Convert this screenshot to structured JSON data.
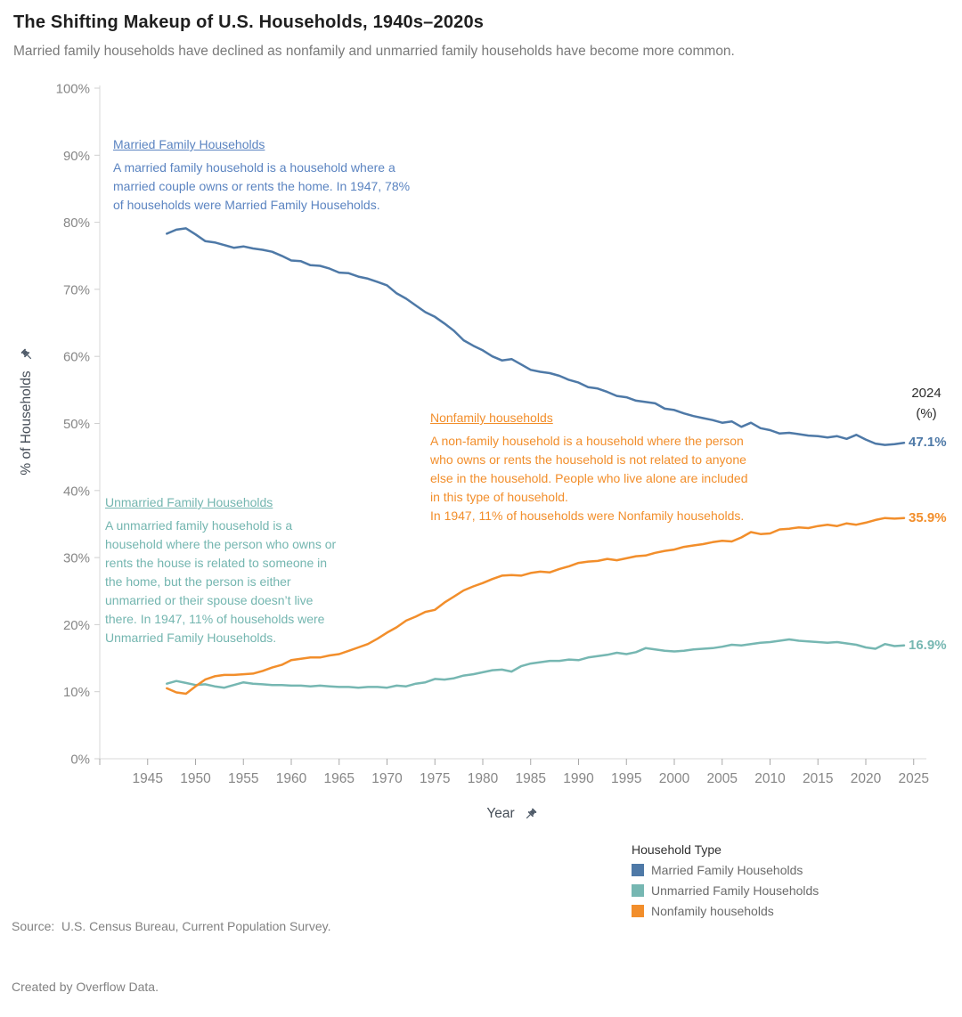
{
  "title": "The Shifting Makeup of U.S. Households, 1940s–2020s",
  "subtitle": "Married family households have declined as nonfamily and unmarried family households have become more common.",
  "axes": {
    "y_title": "% of Households",
    "x_title": "Year",
    "y_ticks": [
      {
        "v": 0,
        "label": "0%"
      },
      {
        "v": 10,
        "label": "10%"
      },
      {
        "v": 20,
        "label": "20%"
      },
      {
        "v": 30,
        "label": "30%"
      },
      {
        "v": 40,
        "label": "40%"
      },
      {
        "v": 50,
        "label": "50%"
      },
      {
        "v": 60,
        "label": "60%"
      },
      {
        "v": 70,
        "label": "70%"
      },
      {
        "v": 80,
        "label": "80%"
      },
      {
        "v": 90,
        "label": "90%"
      },
      {
        "v": 100,
        "label": "100%"
      }
    ],
    "x_ticks": [
      {
        "v": 1945,
        "label": "1945"
      },
      {
        "v": 1950,
        "label": "1950"
      },
      {
        "v": 1955,
        "label": "1955"
      },
      {
        "v": 1960,
        "label": "1960"
      },
      {
        "v": 1965,
        "label": "1965"
      },
      {
        "v": 1970,
        "label": "1970"
      },
      {
        "v": 1975,
        "label": "1975"
      },
      {
        "v": 1980,
        "label": "1980"
      },
      {
        "v": 1985,
        "label": "1985"
      },
      {
        "v": 1990,
        "label": "1990"
      },
      {
        "v": 1995,
        "label": "1995"
      },
      {
        "v": 2000,
        "label": "2000"
      },
      {
        "v": 2005,
        "label": "2005"
      },
      {
        "v": 2010,
        "label": "2010"
      },
      {
        "v": 2015,
        "label": "2015"
      },
      {
        "v": 2020,
        "label": "2020"
      },
      {
        "v": 2025,
        "label": "2025"
      }
    ],
    "x_minor_ticks": [
      1940
    ]
  },
  "right_header": {
    "text": "2024\n(%)"
  },
  "annotations": {
    "married": {
      "heading": "Married Family Households",
      "body": "A married family household is a household where a\nmarried couple owns or rents the home. In 1947, 78%\nof households were Married Family Households.",
      "color": "#5b84c1"
    },
    "nonfamily": {
      "heading": "Nonfamily households",
      "body": "A non-family household is a household where the person\nwho owns or rents the household is not related to anyone\nelse in the household. People who live alone are included\nin this type of household.\nIn 1947, 11% of households were Nonfamily households.",
      "color": "#f28e2b"
    },
    "unmarried": {
      "heading": "Unmarried Family Households",
      "body": "A unmarried family household is a\nhousehold where the person who owns or\nrents the house is related to someone in\nthe home, but the person is either\nunmarried or their spouse doesn’t live\nthere. In 1947, 11% of households were\nUnmarried Family Households.",
      "color": "#74b6b0"
    }
  },
  "legend": {
    "title": "Household Type",
    "items": [
      {
        "label": "Married Family Households",
        "color": "#4e79a7"
      },
      {
        "label": "Unmarried Family Households",
        "color": "#76b7b2"
      },
      {
        "label": "Nonfamily households",
        "color": "#f28e2b"
      }
    ]
  },
  "source": {
    "line1": "Source:  U.S. Census Bureau, Current Population Survey.",
    "line2": "Created by Overflow Data."
  },
  "chart_data": {
    "type": "line",
    "title": "The Shifting Makeup of U.S. Households, 1940s–2020s",
    "xlabel": "Year",
    "ylabel": "% of Households",
    "x_start": 1947,
    "x_end": 2024,
    "xlim": [
      1940,
      2029
    ],
    "ylim": [
      0,
      100
    ],
    "grid": false,
    "legend_position": "bottom-right",
    "series": [
      {
        "name": "Married Family Households",
        "color": "#4e79a7",
        "end_label": "47.1%",
        "values": [
          78.3,
          78.9,
          79.1,
          78.2,
          77.2,
          77.0,
          76.6,
          76.2,
          76.4,
          76.1,
          75.9,
          75.6,
          75.0,
          74.3,
          74.2,
          73.6,
          73.5,
          73.1,
          72.5,
          72.4,
          71.9,
          71.6,
          71.1,
          70.6,
          69.4,
          68.6,
          67.6,
          66.6,
          65.9,
          64.9,
          63.8,
          62.4,
          61.6,
          60.9,
          60.0,
          59.4,
          59.6,
          58.8,
          58.0,
          57.7,
          57.5,
          57.1,
          56.5,
          56.1,
          55.4,
          55.2,
          54.7,
          54.1,
          53.9,
          53.4,
          53.2,
          53.0,
          52.2,
          52.0,
          51.5,
          51.1,
          50.8,
          50.5,
          50.1,
          50.3,
          49.5,
          50.1,
          49.3,
          49.0,
          48.5,
          48.6,
          48.4,
          48.2,
          48.1,
          47.9,
          48.1,
          47.7,
          48.3,
          47.6,
          47.0,
          46.8,
          46.9,
          47.1
        ]
      },
      {
        "name": "Unmarried Family Households",
        "color": "#76b7b2",
        "end_label": "16.9%",
        "values": [
          11.2,
          11.6,
          11.3,
          11.0,
          11.1,
          10.8,
          10.6,
          11.0,
          11.4,
          11.2,
          11.1,
          11.0,
          11.0,
          10.9,
          10.9,
          10.8,
          10.9,
          10.8,
          10.7,
          10.7,
          10.6,
          10.7,
          10.7,
          10.6,
          10.9,
          10.8,
          11.2,
          11.4,
          11.9,
          11.8,
          12.0,
          12.4,
          12.6,
          12.9,
          13.2,
          13.3,
          13.0,
          13.8,
          14.2,
          14.4,
          14.6,
          14.6,
          14.8,
          14.7,
          15.1,
          15.3,
          15.5,
          15.8,
          15.6,
          15.9,
          16.5,
          16.3,
          16.1,
          16.0,
          16.1,
          16.3,
          16.4,
          16.5,
          16.7,
          17.0,
          16.9,
          17.1,
          17.3,
          17.4,
          17.6,
          17.8,
          17.6,
          17.5,
          17.4,
          17.3,
          17.4,
          17.2,
          17.0,
          16.6,
          16.4,
          17.1,
          16.8,
          16.9
        ]
      },
      {
        "name": "Nonfamily households",
        "color": "#f28e2b",
        "end_label": "35.9%",
        "values": [
          10.5,
          9.9,
          9.7,
          10.8,
          11.8,
          12.3,
          12.5,
          12.5,
          12.6,
          12.7,
          13.1,
          13.6,
          14.0,
          14.7,
          14.9,
          15.1,
          15.1,
          15.4,
          15.6,
          16.1,
          16.6,
          17.1,
          17.9,
          18.8,
          19.6,
          20.6,
          21.2,
          21.9,
          22.2,
          23.3,
          24.2,
          25.1,
          25.7,
          26.2,
          26.8,
          27.3,
          27.4,
          27.3,
          27.7,
          27.9,
          27.8,
          28.3,
          28.7,
          29.2,
          29.4,
          29.5,
          29.8,
          29.6,
          29.9,
          30.2,
          30.3,
          30.7,
          31.0,
          31.2,
          31.6,
          31.8,
          32.0,
          32.3,
          32.5,
          32.4,
          33.0,
          33.8,
          33.5,
          33.6,
          34.2,
          34.3,
          34.5,
          34.4,
          34.7,
          34.9,
          34.7,
          35.1,
          34.9,
          35.2,
          35.6,
          35.9,
          35.8,
          35.9
        ]
      }
    ]
  }
}
